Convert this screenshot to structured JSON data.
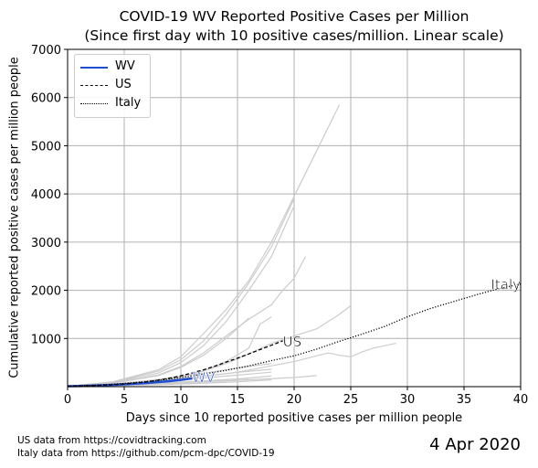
{
  "header": {
    "title_line1": "COVID-19 WV Reported Positive Cases per Million",
    "title_line2": "(Since first day with 10 positive cases/million. Linear scale)"
  },
  "footer": {
    "source_us": "US data from https://covidtracking.com",
    "source_italy": "Italy data from https://github.com/pcm-dpc/COVID-19",
    "date": "4 Apr 2020"
  },
  "chart_data": {
    "type": "line",
    "title": "COVID-19 WV Reported Positive Cases per Million\n(Since first day with 10 positive cases/million. Linear scale)",
    "xlabel": "Days since 10 reported positive cases per million people",
    "ylabel": "Cumulative reported positive cases per million people",
    "xlim": [
      0,
      40
    ],
    "ylim": [
      0,
      7000
    ],
    "x_ticks": [
      0,
      5,
      10,
      15,
      20,
      25,
      30,
      35,
      40
    ],
    "y_ticks": [
      1000,
      2000,
      3000,
      4000,
      5000,
      6000,
      7000
    ],
    "grid": true,
    "legend_position": "upper-left",
    "legend": [
      "WV",
      "US",
      "Italy"
    ],
    "colors": {
      "wv": "#1f4fd0",
      "us": "#000000",
      "italy": "#000000",
      "states": "#cccccc",
      "grid": "#b0b0b0"
    },
    "series": [
      {
        "name": "WV",
        "style": "solid",
        "color": "#1f4fd0",
        "end_label": "WV",
        "x": [
          0,
          1,
          2,
          3,
          4,
          5,
          6,
          7,
          8,
          9,
          10,
          11
        ],
        "y": [
          10,
          14,
          20,
          28,
          38,
          50,
          62,
          78,
          95,
          115,
          140,
          170
        ]
      },
      {
        "name": "US",
        "style": "dashed",
        "color": "#000000",
        "end_label": "US",
        "x": [
          0,
          1,
          2,
          3,
          4,
          5,
          6,
          7,
          8,
          9,
          10,
          11,
          12,
          13,
          14,
          15,
          16,
          17,
          18,
          19
        ],
        "y": [
          10,
          14,
          20,
          28,
          40,
          55,
          75,
          100,
          135,
          175,
          225,
          285,
          350,
          425,
          510,
          590,
          680,
          770,
          860,
          950
        ]
      },
      {
        "name": "Italy",
        "style": "dotted",
        "color": "#000000",
        "end_label": "Italy",
        "x": [
          0,
          2,
          4,
          6,
          8,
          10,
          12,
          14,
          16,
          18,
          20,
          22,
          24,
          26,
          28,
          30,
          32,
          34,
          36,
          38,
          40
        ],
        "y": [
          10,
          25,
          50,
          85,
          130,
          190,
          260,
          340,
          430,
          540,
          640,
          780,
          940,
          1090,
          1250,
          1450,
          1620,
          1760,
          1900,
          2030,
          2130
        ]
      }
    ],
    "background_series": [
      {
        "x": [
          0,
          4,
          8,
          10,
          12,
          14,
          16,
          18,
          20,
          22,
          24
        ],
        "y": [
          10,
          100,
          350,
          620,
          1100,
          1600,
          2200,
          3000,
          3950,
          4900,
          5850
        ]
      },
      {
        "x": [
          0,
          4,
          8,
          10,
          12,
          14,
          16,
          18,
          20
        ],
        "y": [
          10,
          90,
          320,
          560,
          950,
          1500,
          2150,
          2900,
          3900
        ]
      },
      {
        "x": [
          0,
          4,
          8,
          10,
          12,
          14,
          16,
          18,
          20
        ],
        "y": [
          10,
          80,
          280,
          500,
          850,
          1350,
          2000,
          2700,
          3750
        ]
      },
      {
        "x": [
          0,
          4,
          8,
          10,
          12,
          14,
          16,
          18,
          19,
          20,
          21
        ],
        "y": [
          10,
          70,
          240,
          420,
          700,
          1050,
          1400,
          1700,
          2000,
          2250,
          2700
        ]
      },
      {
        "x": [
          0,
          5,
          10,
          12,
          14,
          16,
          18,
          20,
          22,
          24,
          25
        ],
        "y": [
          10,
          60,
          210,
          320,
          480,
          680,
          900,
          1050,
          1200,
          1500,
          1680
        ]
      },
      {
        "x": [
          0,
          4,
          8,
          10,
          12,
          14,
          16
        ],
        "y": [
          10,
          70,
          230,
          400,
          650,
          1000,
          1420
        ]
      },
      {
        "x": [
          0,
          5,
          10,
          12,
          14,
          16,
          17,
          18
        ],
        "y": [
          10,
          60,
          200,
          330,
          520,
          800,
          1300,
          1450
        ]
      },
      {
        "x": [
          0,
          5,
          10,
          15,
          20,
          23,
          24,
          25,
          26,
          27,
          29
        ],
        "y": [
          10,
          50,
          160,
          300,
          520,
          700,
          650,
          620,
          720,
          800,
          900
        ]
      },
      {
        "x": [
          0,
          4,
          8,
          12,
          16,
          18
        ],
        "y": [
          10,
          50,
          150,
          280,
          420,
          480
        ]
      },
      {
        "x": [
          0,
          4,
          8,
          12,
          16,
          18
        ],
        "y": [
          10,
          45,
          120,
          220,
          320,
          360
        ]
      },
      {
        "x": [
          0,
          4,
          8,
          12,
          16,
          18
        ],
        "y": [
          10,
          40,
          100,
          180,
          260,
          300
        ]
      },
      {
        "x": [
          0,
          5,
          10,
          15,
          18
        ],
        "y": [
          10,
          40,
          90,
          160,
          220
        ]
      },
      {
        "x": [
          0,
          5,
          10,
          15,
          20,
          22
        ],
        "y": [
          10,
          35,
          80,
          130,
          190,
          230
        ]
      },
      {
        "x": [
          0,
          4,
          8,
          12,
          16
        ],
        "y": [
          10,
          30,
          70,
          120,
          170
        ]
      },
      {
        "x": [
          0,
          5,
          10,
          15,
          18
        ],
        "y": [
          10,
          30,
          60,
          100,
          140
        ]
      },
      {
        "x": [
          0,
          5,
          10,
          14
        ],
        "y": [
          10,
          25,
          55,
          90
        ]
      }
    ]
  }
}
